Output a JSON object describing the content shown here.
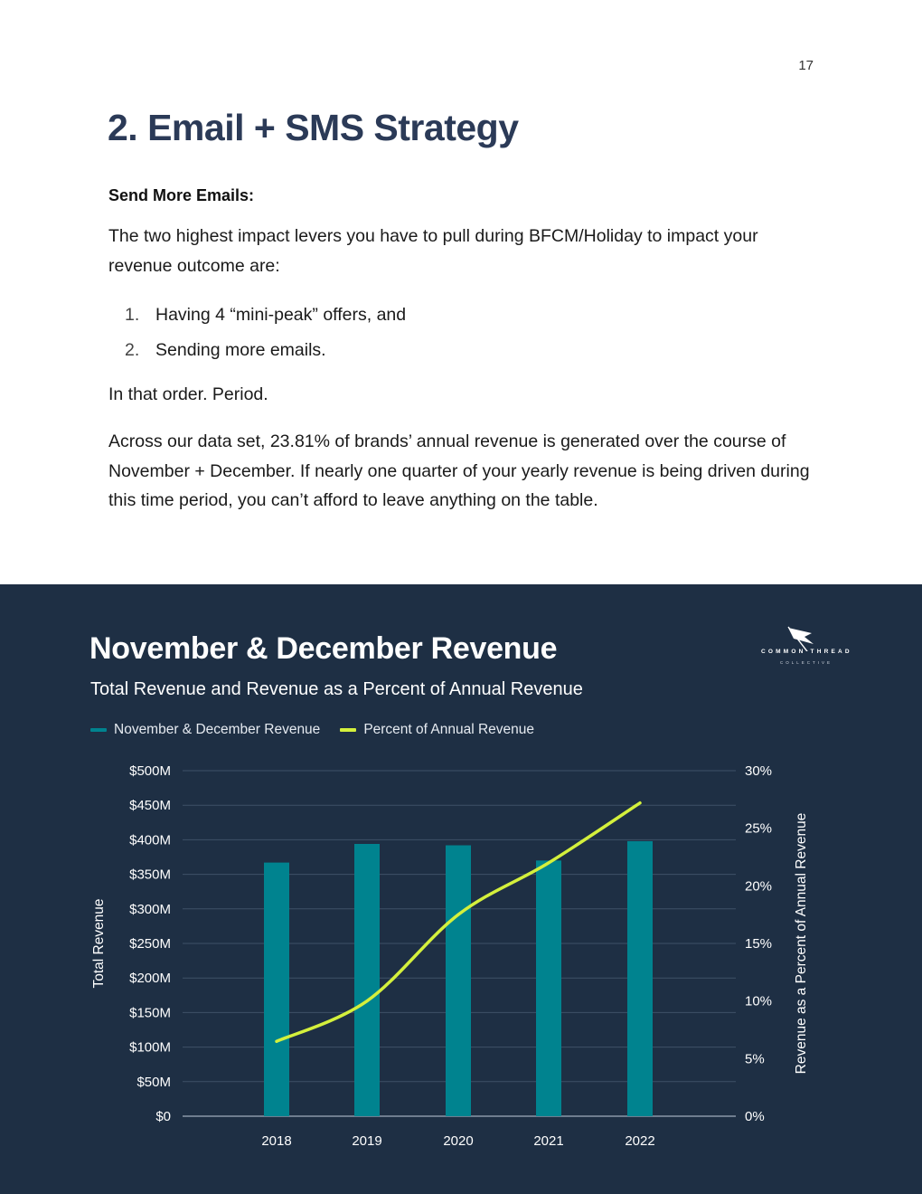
{
  "page": {
    "number": "17"
  },
  "heading": "2. Email + SMS Strategy",
  "subheading": "Send More Emails:",
  "intro": "The two highest impact levers you have to pull during BFCM/Holiday to impact your revenue outcome are:",
  "levers": [
    {
      "num": "1.",
      "text": "Having 4 “mini-peak” offers, and"
    },
    {
      "num": "2.",
      "text": "Sending more emails."
    }
  ],
  "order_note": "In that order. Period.",
  "body": "Across our data set, 23.81% of brands’ annual revenue is generated over the course of November + December. If nearly one quarter of your yearly revenue is being driven during this time period, you can’t afford to leave anything on the table.",
  "logo": {
    "top": "COMMON THREAD",
    "bottom": "COLLECTIVE",
    "icon": "flag-icon"
  },
  "chart_data": {
    "type": "bar",
    "title": "November & December Revenue",
    "subtitle": "Total Revenue and Revenue as a Percent of Annual Revenue",
    "categories": [
      "2018",
      "2019",
      "2020",
      "2021",
      "2022"
    ],
    "series": [
      {
        "name": "November & December Revenue",
        "type": "bar",
        "axis": "left",
        "values": [
          367,
          394,
          392,
          370,
          398
        ],
        "color": "#00838f"
      },
      {
        "name": "Percent of Annual Revenue",
        "type": "line",
        "axis": "right",
        "values": [
          6.5,
          10,
          17.5,
          22,
          27.2
        ],
        "color": "#d4f03c"
      }
    ],
    "ylabel": "Total Revenue",
    "y2label": "Revenue as a Percent of Annual Revenue",
    "ylim": [
      0,
      500
    ],
    "y2lim": [
      0,
      30
    ],
    "yticks": [
      "$0",
      "$50M",
      "$100M",
      "$150M",
      "$200M",
      "$250M",
      "$300M",
      "$350M",
      "$400M",
      "$450M",
      "$500M"
    ],
    "y2ticks": [
      "0%",
      "5%",
      "10%",
      "15%",
      "20%",
      "25%",
      "30%"
    ],
    "grid": true,
    "legend": "top-left"
  },
  "colors": {
    "panel_bg": "#1e2f44",
    "heading": "#2b3a57",
    "bar": "#00838f",
    "line": "#d4f03c"
  }
}
